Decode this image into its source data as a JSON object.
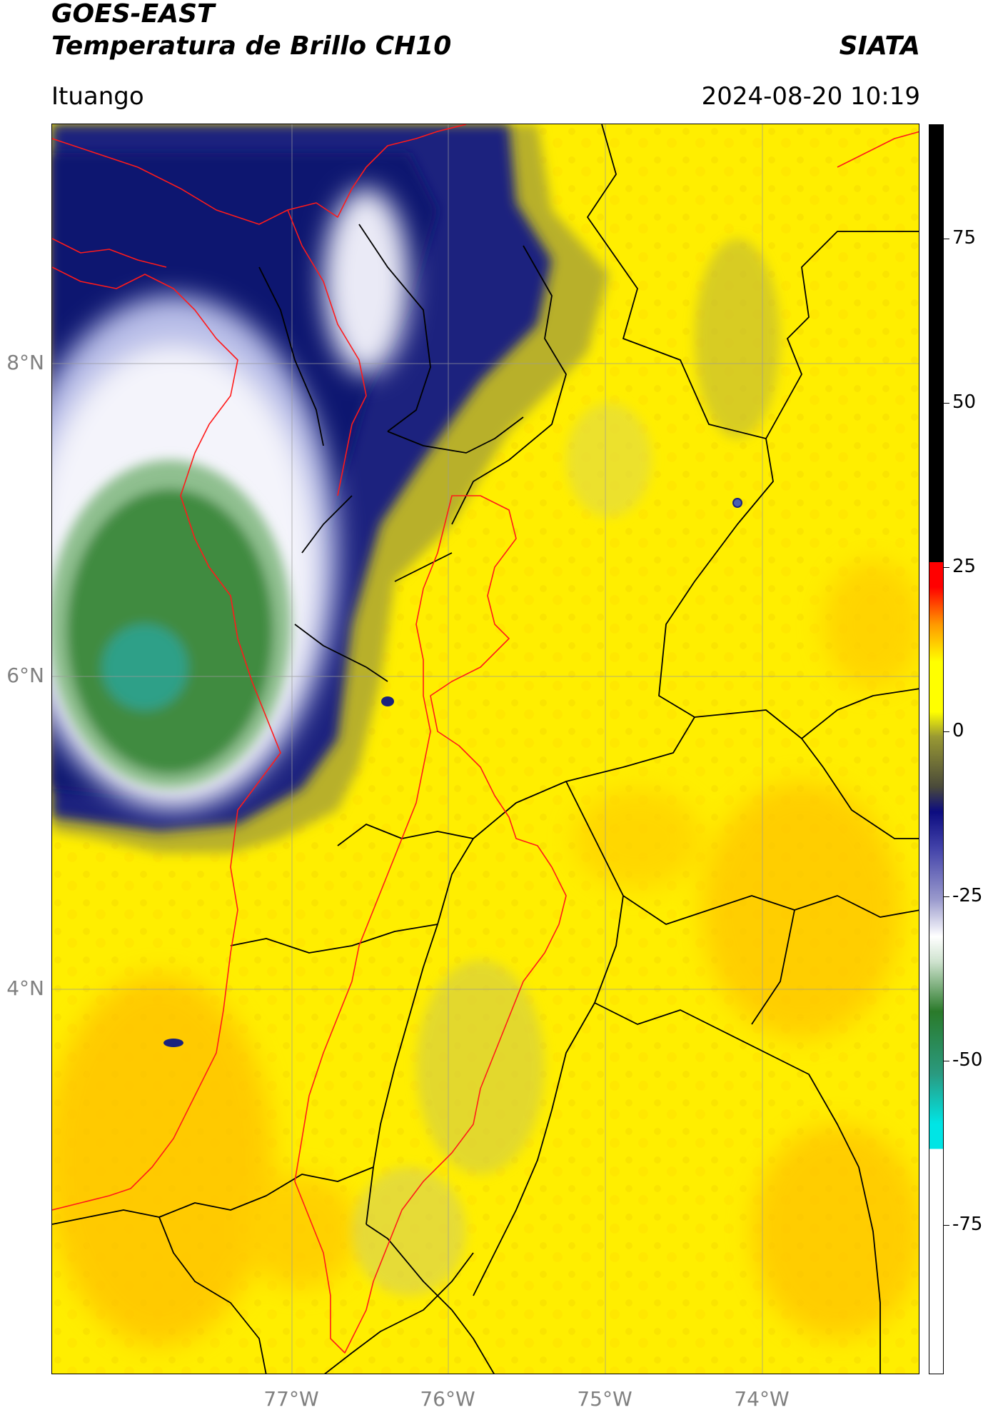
{
  "header": {
    "title_line1": "GOES-EAST",
    "title_line2": "Temperatura de Brillo CH10",
    "agency": "SIATA",
    "location": "Ituango",
    "datetime": "2024-08-20 10:19"
  },
  "map": {
    "latitude_labels": [
      "8°N",
      "6°N",
      "4°N"
    ],
    "longitude_labels": [
      "77°W",
      "76°W",
      "75°W",
      "74°W"
    ],
    "colors": {
      "warm_surface": "#ffee00",
      "cold_cloud_navy": "#0f1a6e",
      "very_cold_green": "#3c8a3c",
      "coastline": "#ff1a1a",
      "admin_borders": "#000000",
      "gridline": "#9a9a9a"
    }
  },
  "colorbar": {
    "tick_labels": [
      "75",
      "50",
      "25",
      "0",
      "-25",
      "-50",
      "-75"
    ],
    "colors": {
      "top_black": "#000000",
      "red": "#ff0000",
      "orange": "#ff9900",
      "yellow": "#ffff00",
      "olive": "#999933",
      "navy": "#0c0c80",
      "white": "#ffffff",
      "green": "#2a7a2a",
      "cyan": "#00e5e5"
    }
  }
}
